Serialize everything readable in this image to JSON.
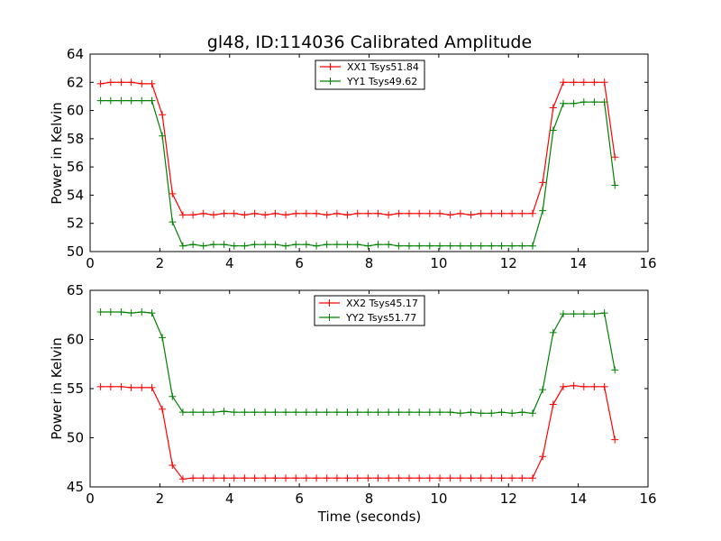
{
  "chart_data": [
    {
      "type": "line",
      "title": "gl48, ID:114036 Calibrated Amplitude",
      "xlabel": "",
      "ylabel": "Power in Kelvin",
      "xlim": [
        0,
        16
      ],
      "ylim": [
        50,
        64
      ],
      "xticks": [
        "0",
        "2",
        "4",
        "6",
        "8",
        "10",
        "12",
        "14",
        "16"
      ],
      "yticks": [
        "50",
        "52",
        "54",
        "56",
        "58",
        "60",
        "62",
        "64"
      ],
      "grid": false,
      "legend_position": "top-center",
      "x": [
        0.3,
        0.59,
        0.89,
        1.18,
        1.48,
        1.77,
        2.07,
        2.36,
        2.66,
        2.95,
        3.25,
        3.54,
        3.84,
        4.13,
        4.43,
        4.72,
        5.02,
        5.31,
        5.61,
        5.9,
        6.2,
        6.49,
        6.79,
        7.08,
        7.38,
        7.67,
        7.97,
        8.26,
        8.56,
        8.85,
        9.15,
        9.44,
        9.74,
        10.03,
        10.33,
        10.62,
        10.92,
        11.21,
        11.51,
        11.8,
        12.1,
        12.39,
        12.69,
        12.98,
        13.28,
        13.57,
        13.87,
        14.16,
        14.46,
        14.75,
        15.05
      ],
      "series": [
        {
          "name": "XX1 Tsys51.84",
          "color": "#ff0000",
          "values": [
            61.9,
            62.0,
            62.0,
            62.0,
            61.9,
            61.9,
            59.7,
            54.1,
            52.6,
            52.6,
            52.7,
            52.6,
            52.7,
            52.7,
            52.6,
            52.7,
            52.6,
            52.7,
            52.6,
            52.7,
            52.7,
            52.7,
            52.6,
            52.7,
            52.6,
            52.7,
            52.7,
            52.7,
            52.6,
            52.7,
            52.7,
            52.7,
            52.7,
            52.7,
            52.6,
            52.7,
            52.6,
            52.7,
            52.7,
            52.7,
            52.7,
            52.7,
            52.7,
            54.9,
            60.2,
            62.0,
            62.0,
            62.0,
            62.0,
            62.0,
            56.7
          ]
        },
        {
          "name": "YY1 Tsys49.62",
          "color": "#008000",
          "values": [
            60.7,
            60.7,
            60.7,
            60.7,
            60.7,
            60.7,
            58.2,
            52.1,
            50.4,
            50.5,
            50.4,
            50.5,
            50.5,
            50.4,
            50.4,
            50.5,
            50.5,
            50.5,
            50.4,
            50.5,
            50.5,
            50.4,
            50.5,
            50.5,
            50.5,
            50.5,
            50.4,
            50.5,
            50.5,
            50.4,
            50.4,
            50.4,
            50.4,
            50.4,
            50.4,
            50.4,
            50.4,
            50.4,
            50.4,
            50.4,
            50.4,
            50.4,
            50.4,
            52.9,
            58.6,
            60.5,
            60.5,
            60.6,
            60.6,
            60.6,
            54.7
          ]
        }
      ]
    },
    {
      "type": "line",
      "title": "",
      "xlabel": "Time (seconds)",
      "ylabel": "Power in Kelvin",
      "xlim": [
        0,
        16
      ],
      "ylim": [
        45,
        65
      ],
      "xticks": [
        "0",
        "2",
        "4",
        "6",
        "8",
        "10",
        "12",
        "14",
        "16"
      ],
      "yticks": [
        "45",
        "50",
        "55",
        "60",
        "65"
      ],
      "grid": false,
      "legend_position": "top-center",
      "x": [
        0.3,
        0.59,
        0.89,
        1.18,
        1.48,
        1.77,
        2.07,
        2.36,
        2.66,
        2.95,
        3.25,
        3.54,
        3.84,
        4.13,
        4.43,
        4.72,
        5.02,
        5.31,
        5.61,
        5.9,
        6.2,
        6.49,
        6.79,
        7.08,
        7.38,
        7.67,
        7.97,
        8.26,
        8.56,
        8.85,
        9.15,
        9.44,
        9.74,
        10.03,
        10.33,
        10.62,
        10.92,
        11.21,
        11.51,
        11.8,
        12.1,
        12.39,
        12.69,
        12.98,
        13.28,
        13.57,
        13.87,
        14.16,
        14.46,
        14.75,
        15.05
      ],
      "series": [
        {
          "name": "XX2 Tsys45.17",
          "color": "#ff0000",
          "values": [
            55.2,
            55.2,
            55.2,
            55.1,
            55.1,
            55.1,
            52.9,
            47.2,
            45.8,
            45.9,
            45.9,
            45.9,
            45.9,
            45.9,
            45.9,
            45.9,
            45.9,
            45.9,
            45.9,
            45.9,
            45.9,
            45.9,
            45.9,
            45.9,
            45.9,
            45.9,
            45.9,
            45.9,
            45.9,
            45.9,
            45.9,
            45.9,
            45.9,
            45.9,
            45.9,
            45.9,
            45.9,
            45.9,
            45.9,
            45.9,
            45.9,
            45.9,
            45.9,
            48.1,
            53.4,
            55.2,
            55.3,
            55.2,
            55.2,
            55.2,
            49.8
          ]
        },
        {
          "name": "YY2 Tsys51.77",
          "color": "#008000",
          "values": [
            62.8,
            62.8,
            62.8,
            62.7,
            62.8,
            62.7,
            60.2,
            54.2,
            52.6,
            52.6,
            52.6,
            52.6,
            52.7,
            52.6,
            52.6,
            52.6,
            52.6,
            52.6,
            52.6,
            52.6,
            52.6,
            52.6,
            52.6,
            52.6,
            52.6,
            52.6,
            52.6,
            52.6,
            52.6,
            52.6,
            52.6,
            52.6,
            52.6,
            52.6,
            52.6,
            52.5,
            52.6,
            52.5,
            52.5,
            52.6,
            52.5,
            52.6,
            52.5,
            54.9,
            60.7,
            62.6,
            62.6,
            62.6,
            62.6,
            62.7,
            56.9
          ]
        }
      ]
    }
  ]
}
